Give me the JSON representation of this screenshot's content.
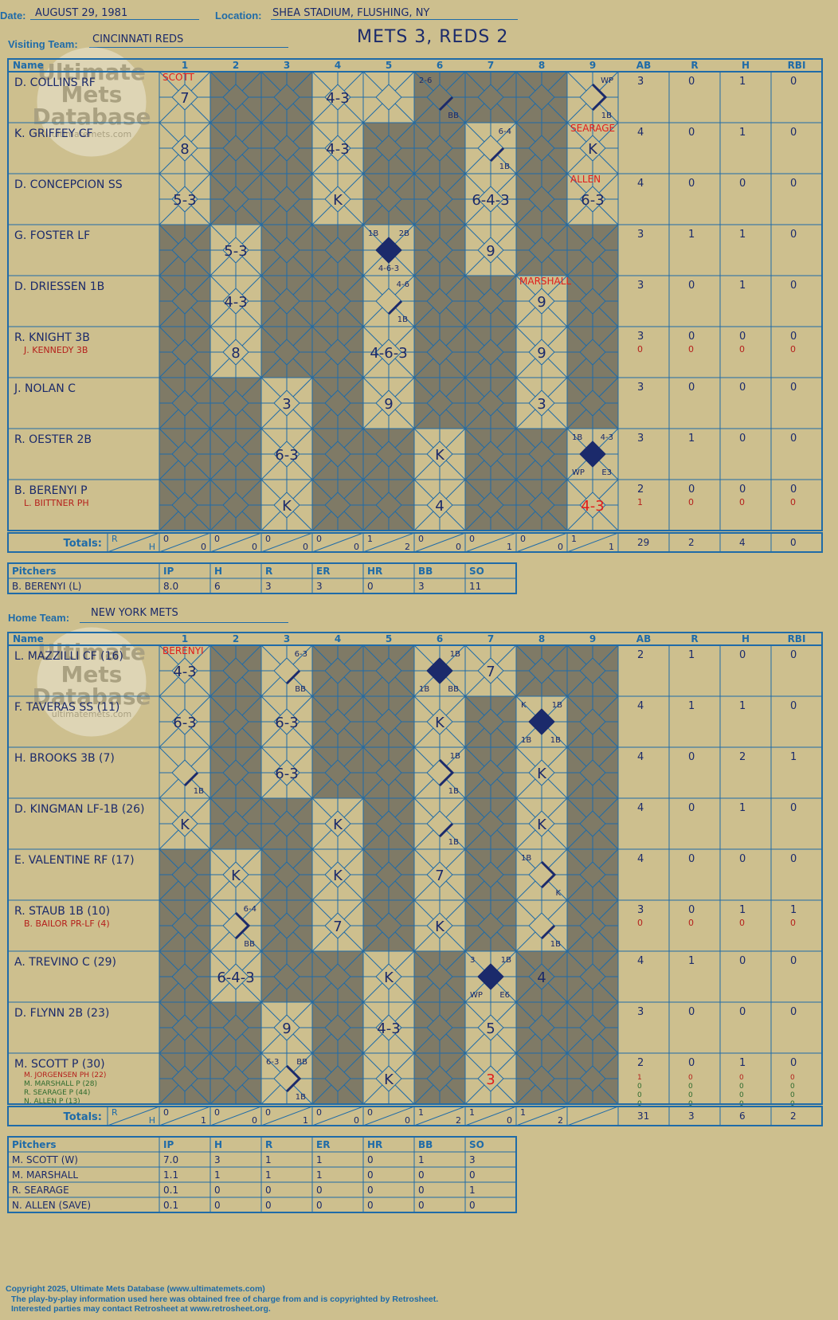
{
  "header": {
    "date_label": "Date:",
    "date": "AUGUST 29, 1981",
    "location_label": "Location:",
    "location": "SHEA STADIUM, FLUSHING, NY",
    "visiting_label": "Visiting Team:",
    "visiting_team": "CINCINNATI REDS",
    "score_title": "METS 3, REDS 2",
    "home_label": "Home Team:",
    "home_team": "NEW YORK METS"
  },
  "watermark": [
    "Ultimate",
    "Mets",
    "Database",
    "ultimatemets.com"
  ],
  "grid_headers": [
    "Name",
    "1",
    "2",
    "3",
    "4",
    "5",
    "6",
    "7",
    "8",
    "9",
    "AB",
    "R",
    "H",
    "RBI"
  ],
  "totals_label": "Totals:",
  "rh_labels": [
    "R",
    "H"
  ],
  "visitors": {
    "batters": [
      {
        "name": "D. COLLINS RF",
        "subs": [],
        "stats": [
          [
            "3",
            "0",
            "1",
            "0"
          ]
        ],
        "note": "SCOTT",
        "note_inning": 1,
        "dark": [
          2,
          3,
          6,
          7,
          8
        ],
        "cells": {
          "1": {
            "t": "7"
          },
          "4": {
            "t": "4-3"
          },
          "6": {
            "bases": [
              1
            ],
            "tl": "2-6",
            "br": "BB"
          },
          "9": {
            "bases": [
              1,
              2
            ],
            "tr": "WP",
            "br": "1B"
          }
        }
      },
      {
        "name": "K. GRIFFEY CF",
        "subs": [],
        "stats": [
          [
            "4",
            "0",
            "1",
            "0"
          ]
        ],
        "note": "SEARAGE",
        "note_inning": 9,
        "dark": [
          2,
          3,
          5,
          6,
          8
        ],
        "cells": {
          "1": {
            "t": "8"
          },
          "4": {
            "t": "4-3"
          },
          "7": {
            "bases": [
              1
            ],
            "tr": "6-4",
            "br": "1B"
          },
          "9": {
            "t": "K"
          }
        }
      },
      {
        "name": "D. CONCEPCION SS",
        "subs": [],
        "stats": [
          [
            "4",
            "0",
            "0",
            "0"
          ]
        ],
        "note": "ALLEN",
        "note_inning": 9,
        "dark": [
          2,
          3,
          5,
          6,
          8
        ],
        "cells": {
          "1": {
            "t": "5-3"
          },
          "4": {
            "t": "K"
          },
          "7": {
            "t": "6-4-3"
          },
          "9": {
            "t": "6-3"
          }
        }
      },
      {
        "name": "G. FOSTER LF",
        "subs": [],
        "stats": [
          [
            "3",
            "1",
            "1",
            "0"
          ]
        ],
        "note": "",
        "dark": [
          1,
          3,
          4,
          6,
          8,
          9
        ],
        "cells": {
          "2": {
            "t": "5-3"
          },
          "5": {
            "run": true,
            "tl": "1B",
            "tr": "2B",
            "b": "4-6-3"
          },
          "7": {
            "t": "9"
          }
        }
      },
      {
        "name": "D. DRIESSEN 1B",
        "subs": [],
        "stats": [
          [
            "3",
            "0",
            "1",
            "0"
          ]
        ],
        "note": "MARSHALL",
        "note_inning": 8,
        "dark": [
          1,
          3,
          4,
          6,
          7,
          9
        ],
        "cells": {
          "2": {
            "t": "4-3"
          },
          "5": {
            "bases": [
              1
            ],
            "tr": "4-6",
            "br": "1B"
          },
          "8": {
            "t": "9"
          }
        }
      },
      {
        "name": "R. KNIGHT 3B",
        "subs": [
          "J. KENNEDY 3B"
        ],
        "stats": [
          [
            "3",
            "0",
            "0",
            "0"
          ],
          [
            "0",
            "0",
            "0",
            "0"
          ]
        ],
        "note": "",
        "dark": [
          1,
          3,
          4,
          6,
          7,
          9
        ],
        "cells": {
          "2": {
            "t": "8"
          },
          "5": {
            "t": "4-6-3"
          },
          "8": {
            "t": "9"
          }
        }
      },
      {
        "name": "J. NOLAN C",
        "subs": [],
        "stats": [
          [
            "3",
            "0",
            "0",
            "0"
          ]
        ],
        "note": "",
        "dark": [
          1,
          2,
          4,
          6,
          7,
          9
        ],
        "cells": {
          "3": {
            "t": "3"
          },
          "5": {
            "t": "9"
          },
          "8": {
            "t": "3"
          }
        }
      },
      {
        "name": "R. OESTER 2B",
        "subs": [],
        "stats": [
          [
            "3",
            "1",
            "0",
            "0"
          ]
        ],
        "note": "",
        "dark": [
          1,
          2,
          4,
          5,
          7,
          8
        ],
        "cells": {
          "3": {
            "t": "6-3"
          },
          "6": {
            "t": "K"
          },
          "9": {
            "run": true,
            "tl": "1B",
            "tr": "4-3",
            "bl": "WP",
            "br": "E3"
          }
        }
      },
      {
        "name": "B. BERENYI P",
        "subs": [
          "L. BIITTNER PH"
        ],
        "stats": [
          [
            "2",
            "0",
            "0",
            "0"
          ],
          [
            "1",
            "0",
            "0",
            "0"
          ]
        ],
        "note": "",
        "dark": [
          1,
          2,
          4,
          5,
          7,
          8
        ],
        "cells": {
          "3": {
            "t": "K"
          },
          "6": {
            "t": "4"
          },
          "9": {
            "t": "4-3",
            "red": true
          }
        }
      }
    ],
    "totals": {
      "innings": [
        [
          "0",
          "0"
        ],
        [
          "0",
          "0"
        ],
        [
          "0",
          "0"
        ],
        [
          "0",
          "0"
        ],
        [
          "1",
          "2"
        ],
        [
          "0",
          "0"
        ],
        [
          "0",
          "1"
        ],
        [
          "0",
          "0"
        ],
        [
          "1",
          "1"
        ]
      ],
      "stats": [
        "29",
        "2",
        "4",
        "0"
      ]
    },
    "pitchers": {
      "headers": [
        "Pitchers",
        "IP",
        "H",
        "R",
        "ER",
        "HR",
        "BB",
        "SO"
      ],
      "rows": [
        [
          "B. BERENYI (L)",
          "8.0",
          "6",
          "3",
          "3",
          "0",
          "3",
          "11"
        ]
      ]
    }
  },
  "home": {
    "batters": [
      {
        "name": "L. MAZZILLI CF (16)",
        "subs": [],
        "stats": [
          [
            "2",
            "1",
            "0",
            "0"
          ]
        ],
        "note": "BERENYI",
        "note_inning": 1,
        "dark": [
          2,
          4,
          5,
          8,
          9
        ],
        "cells": {
          "1": {
            "t": "4-3"
          },
          "3": {
            "bases": [
              1
            ],
            "tr": "6-3",
            "br": "BB"
          },
          "6": {
            "run": true,
            "tr": "1B",
            "bl": "1B",
            "br": "BB"
          },
          "7": {
            "t": "7"
          }
        }
      },
      {
        "name": "F. TAVERAS SS (11)",
        "subs": [],
        "stats": [
          [
            "4",
            "1",
            "1",
            "0"
          ]
        ],
        "note": "",
        "dark": [
          2,
          4,
          5,
          7,
          9
        ],
        "cells": {
          "1": {
            "t": "6-3"
          },
          "3": {
            "t": "6-3"
          },
          "6": {
            "t": "K"
          },
          "8": {
            "run": true,
            "tl": "K",
            "tr": "1B",
            "bl": "1B",
            "br": "1B"
          }
        }
      },
      {
        "name": "H. BROOKS 3B (7)",
        "subs": [],
        "stats": [
          [
            "4",
            "0",
            "2",
            "1"
          ]
        ],
        "note": "",
        "dark": [
          2,
          4,
          5,
          7,
          9
        ],
        "cells": {
          "1": {
            "bases": [
              1
            ],
            "br": "1B"
          },
          "3": {
            "t": "6-3"
          },
          "6": {
            "bases": [
              1,
              2
            ],
            "tr": "1B",
            "br": "1B"
          },
          "8": {
            "t": "K"
          }
        }
      },
      {
        "name": "D. KINGMAN LF-1B (26)",
        "subs": [],
        "stats": [
          [
            "4",
            "0",
            "1",
            "0"
          ]
        ],
        "note": "",
        "dark": [
          2,
          3,
          5,
          7,
          9
        ],
        "cells": {
          "1": {
            "t": "K"
          },
          "4": {
            "t": "K"
          },
          "6": {
            "bases": [
              1
            ],
            "br": "1B"
          },
          "8": {
            "t": "K"
          }
        }
      },
      {
        "name": "E. VALENTINE RF (17)",
        "subs": [],
        "stats": [
          [
            "4",
            "0",
            "0",
            "0"
          ]
        ],
        "note": "",
        "dark": [
          1,
          3,
          5,
          7,
          9
        ],
        "cells": {
          "2": {
            "t": "K"
          },
          "4": {
            "t": "K"
          },
          "6": {
            "t": "7"
          },
          "8": {
            "bases": [
              1,
              2
            ],
            "tl": "1B",
            "br": "K"
          }
        }
      },
      {
        "name": "R. STAUB 1B (10)",
        "subs": [
          "B. BAILOR PR-LF (4)"
        ],
        "stats": [
          [
            "3",
            "0",
            "1",
            "1"
          ],
          [
            "0",
            "0",
            "0",
            "0"
          ]
        ],
        "note": "",
        "dark": [
          1,
          3,
          5,
          7,
          9
        ],
        "cells": {
          "2": {
            "bases": [
              1,
              2
            ],
            "tr": "6-4",
            "br": "BB"
          },
          "4": {
            "t": "7"
          },
          "6": {
            "t": "K"
          },
          "8": {
            "bases": [
              1
            ],
            "br": "1B"
          }
        }
      },
      {
        "name": "A. TREVINO C (29)",
        "subs": [],
        "stats": [
          [
            "4",
            "1",
            "0",
            "0"
          ]
        ],
        "note": "",
        "dark": [
          1,
          3,
          4,
          6,
          8,
          9
        ],
        "cells": {
          "2": {
            "t": "6-4-3"
          },
          "5": {
            "t": "K"
          },
          "7": {
            "run": true,
            "tl": "3",
            "tr": "1B",
            "bl": "WP",
            "br": "E6"
          },
          "8": {
            "t": "4"
          }
        }
      },
      {
        "name": "D. FLYNN 2B (23)",
        "subs": [],
        "stats": [
          [
            "3",
            "0",
            "0",
            "0"
          ]
        ],
        "note": "",
        "dark": [
          1,
          2,
          4,
          6,
          8,
          9
        ],
        "cells": {
          "3": {
            "t": "9"
          },
          "5": {
            "t": "4-3"
          },
          "7": {
            "t": "5"
          }
        }
      },
      {
        "name": "M. SCOTT P (30)",
        "subs": [
          "M. JORGENSEN PH (22)",
          "M. MARSHALL P (28)",
          "R. SEARAGE P (44)",
          "N. ALLEN P (13)"
        ],
        "stats": [
          [
            "2",
            "0",
            "1",
            "0"
          ],
          [
            "1",
            "0",
            "0",
            "0"
          ],
          [
            "0",
            "0",
            "0",
            "0"
          ],
          [
            "0",
            "0",
            "0",
            "0"
          ],
          [
            "0",
            "0",
            "0",
            "0"
          ]
        ],
        "note": "",
        "dark": [
          1,
          2,
          4,
          6,
          8,
          9
        ],
        "cells": {
          "3": {
            "bases": [
              1,
              2
            ],
            "tl": "6-3",
            "tr": "BB",
            "br": "1B"
          },
          "5": {
            "t": "K"
          },
          "7": {
            "t": "3",
            "red": true
          }
        }
      }
    ],
    "totals": {
      "innings": [
        [
          "0",
          "1"
        ],
        [
          "0",
          "0"
        ],
        [
          "0",
          "1"
        ],
        [
          "0",
          "0"
        ],
        [
          "0",
          "0"
        ],
        [
          "1",
          "2"
        ],
        [
          "1",
          "0"
        ],
        [
          "1",
          "2"
        ],
        null
      ],
      "stats": [
        "31",
        "3",
        "6",
        "2"
      ]
    },
    "pitchers": {
      "headers": [
        "Pitchers",
        "IP",
        "H",
        "R",
        "ER",
        "HR",
        "BB",
        "SO"
      ],
      "rows": [
        [
          "M. SCOTT (W)",
          "7.0",
          "3",
          "1",
          "1",
          "0",
          "1",
          "3"
        ],
        [
          "M. MARSHALL",
          "1.1",
          "1",
          "1",
          "1",
          "0",
          "0",
          "0"
        ],
        [
          "R. SEARAGE",
          "0.1",
          "0",
          "0",
          "0",
          "0",
          "0",
          "1"
        ],
        [
          "N. ALLEN (SAVE)",
          "0.1",
          "0",
          "0",
          "0",
          "0",
          "0",
          "0"
        ]
      ]
    }
  },
  "footer": {
    "line1": "Copyright 2025, Ultimate Mets Database (www.ultimatemets.com)",
    "line2": "The play-by-play information used here was obtained free of charge from and is copyrighted by Retrosheet.",
    "line3": "Interested parties may contact Retrosheet at www.retrosheet.org."
  },
  "colors": {
    "background": "#cdbf8e",
    "line": "#1f6ba8",
    "ink": "#1b2a6b",
    "dark_cell": "#7f7a66",
    "red": "#e11c1c",
    "sub_red": "#b5201c",
    "green": "#2e6b2e"
  }
}
